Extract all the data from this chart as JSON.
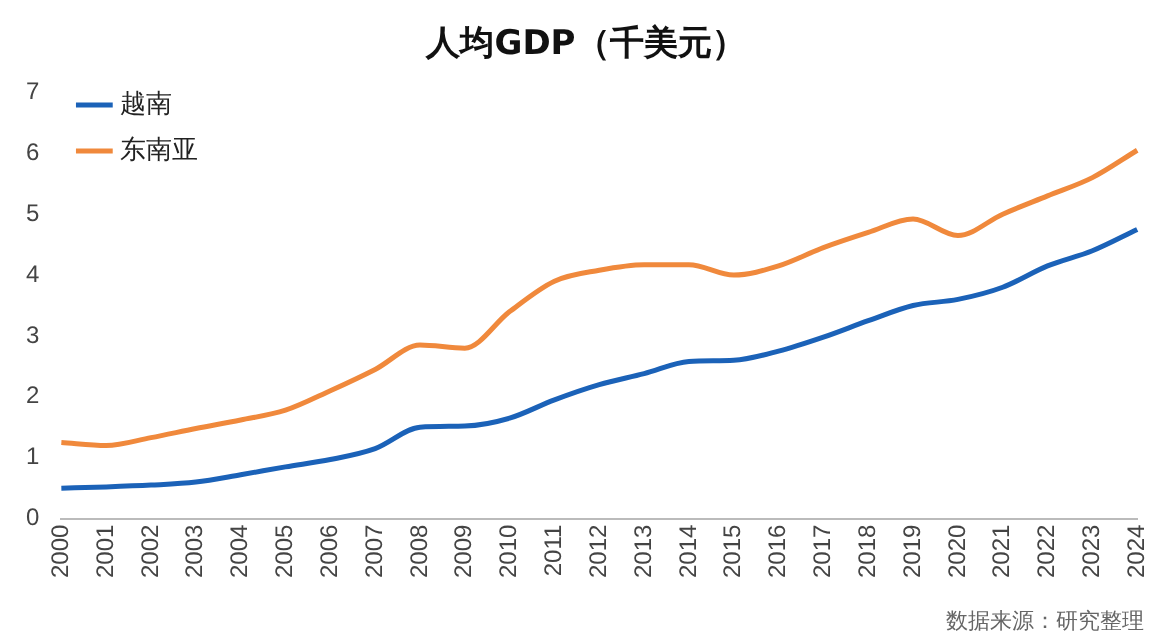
{
  "chart_data": {
    "type": "line",
    "title": "人均GDP（千美元）",
    "categories": [
      "2000",
      "2001",
      "2002",
      "2003",
      "2004",
      "2005",
      "2006",
      "2007",
      "2008",
      "2009",
      "2010",
      "2011",
      "2012",
      "2013",
      "2014",
      "2015",
      "2016",
      "2017",
      "2018",
      "2019",
      "2020",
      "2021",
      "2022",
      "2023",
      "2024"
    ],
    "series": [
      {
        "name": "越南",
        "color": "#1b62b8",
        "values": [
          0.5,
          0.52,
          0.55,
          0.6,
          0.72,
          0.85,
          0.97,
          1.15,
          1.5,
          1.52,
          1.65,
          1.95,
          2.2,
          2.38,
          2.58,
          2.6,
          2.75,
          2.98,
          3.25,
          3.5,
          3.6,
          3.8,
          4.15,
          4.4,
          4.75
        ]
      },
      {
        "name": "东南亚",
        "color": "#f0893c",
        "values": [
          1.25,
          1.2,
          1.33,
          1.48,
          1.62,
          1.78,
          2.1,
          2.45,
          2.85,
          2.8,
          3.4,
          3.9,
          4.08,
          4.17,
          4.17,
          4.0,
          4.15,
          4.45,
          4.7,
          4.92,
          4.65,
          5.0,
          5.3,
          5.6,
          6.05
        ]
      }
    ],
    "ylim": [
      0,
      7
    ],
    "yticks": [
      0,
      1,
      2,
      3,
      4,
      5,
      6,
      7
    ],
    "grid": false,
    "legend": "top left",
    "marker": "none",
    "line_style": "solid",
    "annotations": [
      "数据来源：研究整理"
    ]
  }
}
